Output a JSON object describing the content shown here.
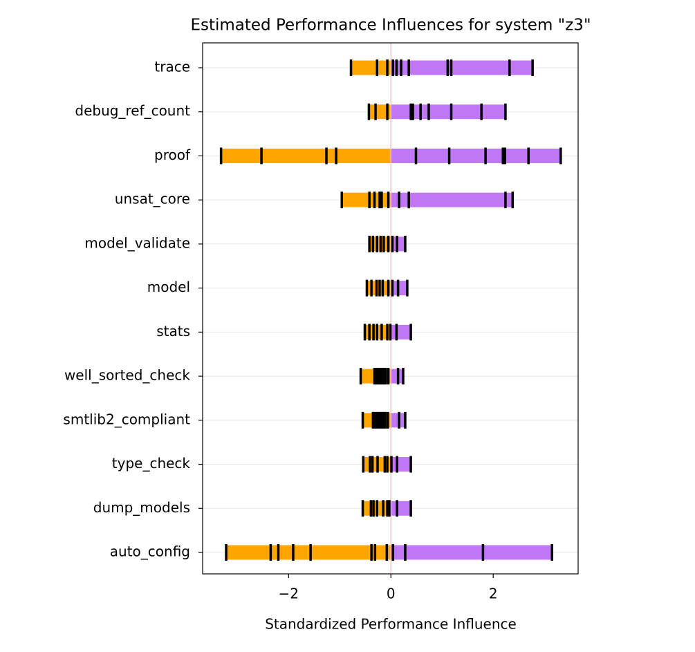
{
  "chart_data": {
    "type": "strip",
    "title": "Estimated Performance Influences for system \"z3\"",
    "xlabel": "Standardized Performance Influence",
    "categories": [
      "trace",
      "debug_ref_count",
      "proof",
      "unsat_core",
      "model_validate",
      "model",
      "stats",
      "well_sorted_check",
      "smtlib2_compliant",
      "type_check",
      "dump_models",
      "auto_config"
    ],
    "values": [
      [
        -0.78,
        -0.27,
        -0.07,
        0.04,
        0.11,
        0.2,
        0.35,
        1.11,
        1.18,
        2.32,
        2.77
      ],
      [
        -0.43,
        -0.3,
        -0.07,
        0.39,
        0.43,
        0.58,
        0.74,
        1.18,
        1.77,
        2.24
      ],
      [
        -3.32,
        -2.53,
        -1.26,
        -1.07,
        0.49,
        1.14,
        1.85,
        2.19,
        2.23,
        2.69,
        3.32
      ],
      [
        -0.96,
        -0.42,
        -0.32,
        -0.22,
        -0.18,
        -0.05,
        0.16,
        0.35,
        2.24,
        2.38
      ],
      [
        -0.42,
        -0.35,
        -0.27,
        -0.2,
        -0.14,
        -0.05,
        0.03,
        0.12,
        0.28
      ],
      [
        -0.47,
        -0.38,
        -0.28,
        -0.22,
        -0.16,
        -0.05,
        0.03,
        0.14,
        0.32
      ],
      [
        -0.51,
        -0.42,
        -0.34,
        -0.27,
        -0.18,
        -0.07,
        -0.01,
        0.11,
        0.39
      ],
      [
        -0.59,
        -0.32,
        -0.29,
        -0.25,
        -0.22,
        -0.18,
        -0.14,
        -0.1,
        -0.05,
        0.14,
        0.24
      ],
      [
        -0.55,
        -0.35,
        -0.31,
        -0.27,
        -0.23,
        -0.19,
        -0.15,
        -0.11,
        -0.06,
        0.16,
        0.28
      ],
      [
        -0.54,
        -0.41,
        -0.36,
        -0.26,
        -0.12,
        -0.07,
        0.01,
        0.12,
        0.39
      ],
      [
        -0.55,
        -0.39,
        -0.34,
        -0.27,
        -0.15,
        -0.07,
        -0.03,
        0.12,
        0.39
      ],
      [
        -3.22,
        -2.35,
        -2.2,
        -1.91,
        -1.57,
        -0.38,
        -0.31,
        -0.08,
        0.04,
        0.28,
        1.8,
        3.15
      ]
    ],
    "negative_color": "#ffa500",
    "positive_color": "#bf77f6",
    "tick_color": "#000000",
    "zero_line_color": "#f4c2c2",
    "xlim": [
      -3.68,
      3.66
    ],
    "xticks": [
      {
        "value": -2,
        "label": "−2"
      },
      0,
      2
    ],
    "grid": true
  }
}
